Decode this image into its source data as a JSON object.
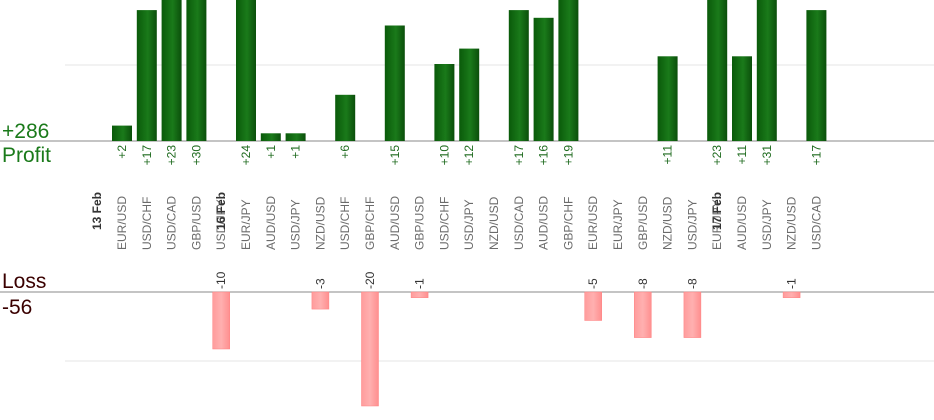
{
  "chart_data": {
    "type": "bar",
    "profit_total": "+286",
    "profit_label": "Profit",
    "loss_label": "Loss",
    "loss_total": "-56",
    "categories": [
      "EUR/USD",
      "USD/CHF",
      "USD/CAD",
      "GBP/USD",
      "USD/JPY",
      "EUR/JPY",
      "AUD/USD",
      "USD/JPY",
      "NZD/USD",
      "USD/CHF",
      "GBP/CHF",
      "AUD/USD",
      "GBP/USD",
      "USD/CHF",
      "USD/JPY",
      "NZD/USD",
      "USD/CAD",
      "AUD/USD",
      "GBP/CHF",
      "EUR/USD",
      "EUR/JPY",
      "GBP/USD",
      "NZD/USD",
      "USD/JPY",
      "EUR/JPY",
      "AUD/USD",
      "USD/JPY",
      "NZD/USD",
      "USD/CAD"
    ],
    "dates": [
      {
        "label": "13 Feb",
        "before_index": 0
      },
      {
        "label": "16 Feb",
        "before_index": 5
      },
      {
        "label": "17 Feb",
        "before_index": 25
      }
    ],
    "series": [
      {
        "name": "Profit",
        "color": "#1a7a1a",
        "values": [
          2,
          17,
          23,
          30,
          null,
          24,
          1,
          1,
          null,
          6,
          null,
          15,
          null,
          10,
          12,
          null,
          17,
          16,
          19,
          null,
          null,
          null,
          11,
          null,
          23,
          11,
          31,
          null,
          17
        ],
        "labels": [
          "+2",
          "+17",
          "+23",
          "+30",
          "",
          "+24",
          "+1",
          "+1",
          "",
          "+6",
          "",
          "+15",
          "",
          "+10",
          "+12",
          "",
          "+17",
          "+16",
          "+19",
          "",
          "",
          "",
          "+11",
          "",
          "+23",
          "+11",
          "+31",
          "",
          "+17"
        ]
      },
      {
        "name": "Loss",
        "color": "#ffb0b0",
        "values": [
          null,
          null,
          null,
          null,
          -10,
          null,
          null,
          null,
          -3,
          null,
          -20,
          null,
          -1,
          null,
          null,
          null,
          null,
          null,
          null,
          -5,
          null,
          -8,
          null,
          -8,
          null,
          null,
          null,
          -1,
          null
        ],
        "labels": [
          "",
          "",
          "",
          "",
          "-10",
          "",
          "",
          "",
          "-3",
          "",
          "-20",
          "",
          "-1",
          "",
          "",
          "",
          "",
          "",
          "",
          "-5",
          "",
          "-8",
          "",
          "-8",
          "",
          "",
          "",
          "-1",
          ""
        ]
      }
    ],
    "colors": {
      "profit_text": "#1a7a1a",
      "loss_text": "#3a0000",
      "grid": "#e5e5e5",
      "axis": "#888888"
    }
  }
}
